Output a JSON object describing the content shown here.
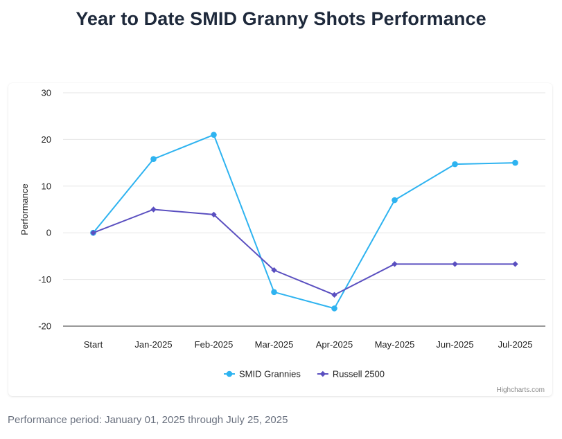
{
  "page": {
    "title": "Year to Date SMID Granny Shots Performance",
    "footnote": "Performance period: January 01, 2025 through July 25, 2025"
  },
  "chart_data": {
    "type": "line",
    "title": "Year to Date SMID Granny Shots Performance",
    "xlabel": "",
    "ylabel": "Performance",
    "categories": [
      "Start",
      "Jan-2025",
      "Feb-2025",
      "Mar-2025",
      "Apr-2025",
      "May-2025",
      "Jun-2025",
      "Jul-2025"
    ],
    "ylim": [
      -20,
      30
    ],
    "yticks": [
      30,
      20,
      10,
      0,
      -10,
      -20
    ],
    "grid": true,
    "legend_position": "bottom-center",
    "credits": "Highcharts.com",
    "series": [
      {
        "name": "SMID Grannies",
        "color": "#2eb3f0",
        "marker": "circle",
        "values": [
          0,
          15.8,
          21.0,
          -12.7,
          -16.2,
          7.0,
          14.7,
          15.0
        ]
      },
      {
        "name": "Russell 2500",
        "color": "#5a4fc0",
        "marker": "diamond",
        "values": [
          0,
          5.0,
          3.9,
          -8.0,
          -13.3,
          -6.7,
          -6.7,
          -6.7
        ]
      }
    ]
  }
}
